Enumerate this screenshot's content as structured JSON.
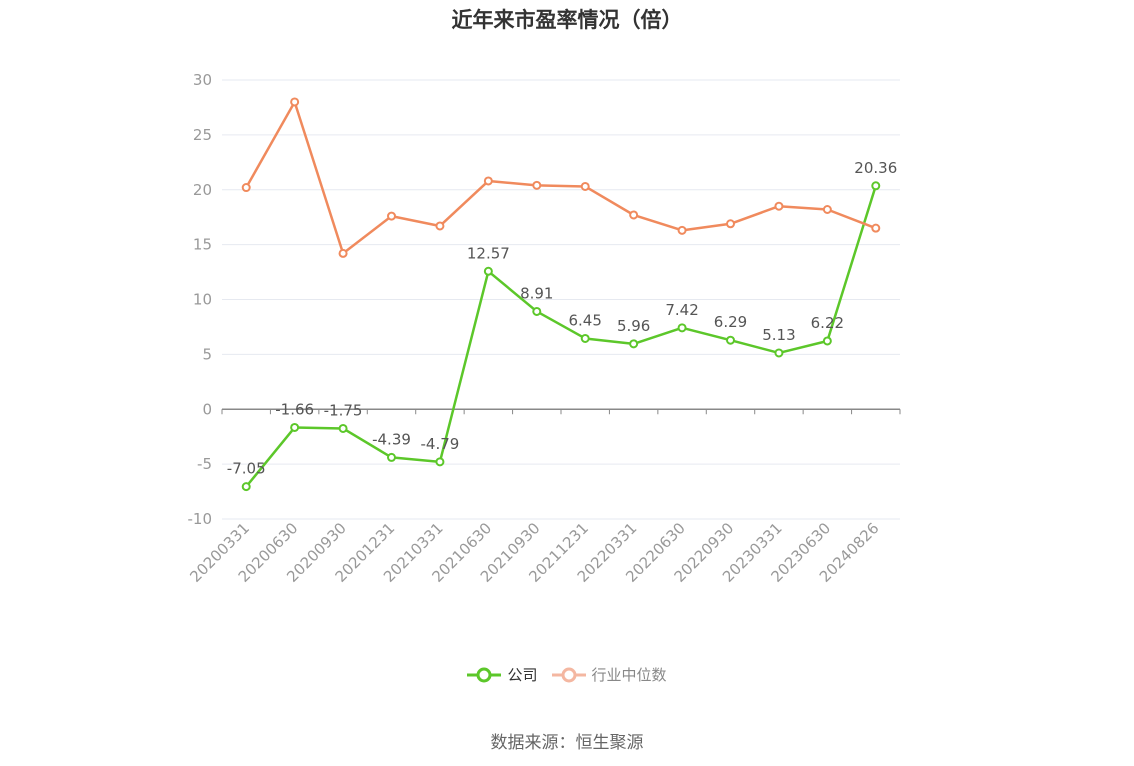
{
  "title": "近年来市盈率情况（倍）",
  "source_text": "数据来源：恒生聚源",
  "colors": {
    "company": "#5cc72a",
    "industry": "#f08a5d",
    "industry_legend": "#f4b7a1",
    "grid": "#e6e9f0",
    "axis": "#888888",
    "tick_text": "#999999",
    "label_text": "#555555"
  },
  "chart_data": {
    "type": "line",
    "title": "近年来市盈率情况（倍）",
    "x": [
      "20200331",
      "20200630",
      "20200930",
      "20201231",
      "20210331",
      "20210630",
      "20210930",
      "20211231",
      "20220331",
      "20220630",
      "20220930",
      "20230331",
      "20230630",
      "20240826"
    ],
    "ylim": [
      -10,
      30
    ],
    "yticks": [
      30,
      25,
      20,
      15,
      10,
      5,
      0,
      -5,
      -10
    ],
    "grid": true,
    "legend_position": "bottom",
    "series": [
      {
        "name": "公司",
        "values": [
          -7.05,
          -1.66,
          -1.75,
          -4.39,
          -4.79,
          12.57,
          8.91,
          6.45,
          5.96,
          7.42,
          6.29,
          5.13,
          6.22,
          20.36
        ],
        "labels": [
          "-7.05",
          "-1.66",
          "-1.75",
          "-4.39",
          "-4.79",
          "12.57",
          "8.91",
          "6.45",
          "5.96",
          "7.42",
          "6.29",
          "5.13",
          "6.22",
          "20.36"
        ]
      },
      {
        "name": "行业中位数",
        "values": [
          20.2,
          28.0,
          14.2,
          17.6,
          16.7,
          20.8,
          20.4,
          20.3,
          17.7,
          16.3,
          16.9,
          18.5,
          18.2,
          16.5
        ]
      }
    ]
  },
  "legend": [
    {
      "label": "公司"
    },
    {
      "label": "行业中位数"
    }
  ]
}
